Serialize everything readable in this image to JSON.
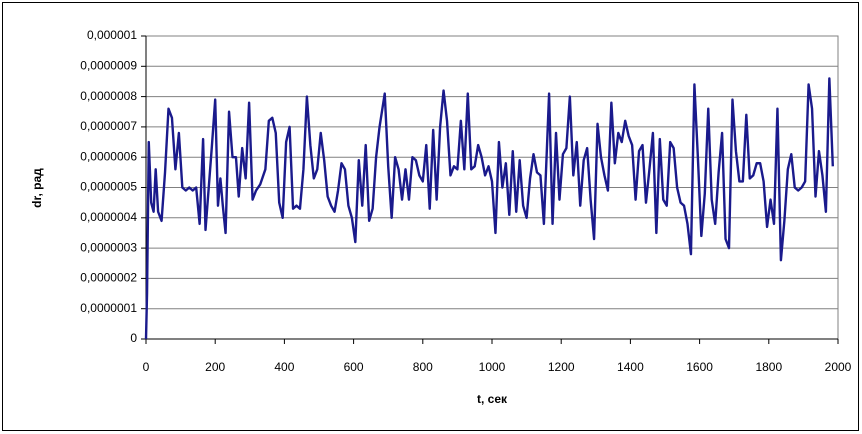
{
  "chart_data": {
    "type": "line",
    "x_label": "t, сек",
    "y_label": "dr,  рад",
    "x": [
      0,
      3,
      8,
      15,
      22,
      28,
      35,
      45,
      55,
      65,
      75,
      85,
      95,
      105,
      115,
      125,
      135,
      145,
      155,
      165,
      172,
      180,
      190,
      200,
      208,
      215,
      222,
      230,
      240,
      250,
      260,
      268,
      278,
      288,
      298,
      308,
      318,
      330,
      345,
      355,
      365,
      375,
      385,
      395,
      405,
      415,
      425,
      435,
      445,
      455,
      465,
      475,
      485,
      495,
      505,
      515,
      525,
      535,
      545,
      555,
      565,
      575,
      585,
      595,
      605,
      615,
      625,
      635,
      645,
      655,
      665,
      675,
      690,
      700,
      710,
      720,
      730,
      740,
      750,
      760,
      770,
      780,
      790,
      800,
      810,
      820,
      830,
      840,
      850,
      860,
      870,
      880,
      890,
      900,
      910,
      920,
      930,
      940,
      950,
      960,
      970,
      980,
      990,
      1000,
      1010,
      1020,
      1030,
      1040,
      1050,
      1060,
      1070,
      1080,
      1090,
      1100,
      1110,
      1120,
      1130,
      1140,
      1150,
      1165,
      1175,
      1185,
      1195,
      1205,
      1215,
      1225,
      1235,
      1245,
      1255,
      1265,
      1275,
      1285,
      1295,
      1305,
      1315,
      1325,
      1335,
      1345,
      1355,
      1365,
      1375,
      1385,
      1395,
      1405,
      1415,
      1425,
      1435,
      1445,
      1455,
      1465,
      1475,
      1485,
      1495,
      1505,
      1515,
      1525,
      1535,
      1545,
      1555,
      1565,
      1575,
      1585,
      1595,
      1605,
      1615,
      1625,
      1635,
      1645,
      1655,
      1665,
      1675,
      1685,
      1695,
      1705,
      1715,
      1725,
      1735,
      1745,
      1755,
      1765,
      1775,
      1785,
      1795,
      1805,
      1815,
      1825,
      1835,
      1845,
      1855,
      1865,
      1875,
      1885,
      1895,
      1905,
      1915,
      1925,
      1935,
      1945,
      1955,
      1965,
      1975,
      1985
    ],
    "series": [
      {
        "color": "#1a1a8c",
        "values": [
          0,
          1.5e-07,
          6.5e-07,
          4.5e-07,
          4.2e-07,
          5.6e-07,
          4.2e-07,
          3.9e-07,
          5.5e-07,
          7.6e-07,
          7.3e-07,
          5.6e-07,
          6.8e-07,
          5e-07,
          4.9e-07,
          5e-07,
          4.9e-07,
          5e-07,
          3.8e-07,
          6.6e-07,
          3.6e-07,
          4.8e-07,
          6.3e-07,
          7.9e-07,
          4.4e-07,
          5.3e-07,
          4.4e-07,
          3.5e-07,
          7.5e-07,
          6e-07,
          6e-07,
          4.7e-07,
          6.3e-07,
          5.3e-07,
          7.8e-07,
          4.6e-07,
          4.9e-07,
          5.1e-07,
          5.6e-07,
          7.2e-07,
          7.3e-07,
          6.8e-07,
          4.5e-07,
          4e-07,
          6.5e-07,
          7e-07,
          4.3e-07,
          4.4e-07,
          4.3e-07,
          5.6e-07,
          8e-07,
          6.4e-07,
          5.3e-07,
          5.6e-07,
          6.8e-07,
          5.9e-07,
          4.7e-07,
          4.4e-07,
          4.2e-07,
          4.9e-07,
          5.8e-07,
          5.6e-07,
          4.4e-07,
          4e-07,
          3.2e-07,
          5.9e-07,
          4.4e-07,
          6.4e-07,
          3.9e-07,
          4.3e-07,
          6e-07,
          7e-07,
          8.1e-07,
          5.7e-07,
          4e-07,
          6e-07,
          5.6e-07,
          4.6e-07,
          5.6e-07,
          4.6e-07,
          6e-07,
          5.9e-07,
          5.4e-07,
          5.2e-07,
          6.4e-07,
          4.3e-07,
          6.9e-07,
          4.6e-07,
          7e-07,
          8.2e-07,
          7.2e-07,
          5.4e-07,
          5.7e-07,
          5.6e-07,
          7.2e-07,
          5.6e-07,
          8.1e-07,
          5.6e-07,
          5.7e-07,
          6.4e-07,
          6e-07,
          5.4e-07,
          5.7e-07,
          5.2e-07,
          3.5e-07,
          6.5e-07,
          5e-07,
          5.8e-07,
          4.1e-07,
          6.2e-07,
          4.2e-07,
          5.9e-07,
          4.4e-07,
          4e-07,
          5.3e-07,
          6.1e-07,
          5.5e-07,
          5.4e-07,
          3.8e-07,
          8.1e-07,
          3.8e-07,
          6.8e-07,
          4.6e-07,
          6.1e-07,
          6.3e-07,
          8e-07,
          5.4e-07,
          6.5e-07,
          4.4e-07,
          5.9e-07,
          6.3e-07,
          4.6e-07,
          3.3e-07,
          7.1e-07,
          6e-07,
          5.4e-07,
          4.9e-07,
          7.8e-07,
          5.8e-07,
          6.8e-07,
          6.5e-07,
          7.2e-07,
          6.7e-07,
          6.4e-07,
          4.6e-07,
          6.2e-07,
          6.4e-07,
          4.5e-07,
          5.6e-07,
          6.8e-07,
          3.5e-07,
          6.6e-07,
          4.6e-07,
          4.4e-07,
          6.5e-07,
          6.3e-07,
          5e-07,
          4.5e-07,
          4.4e-07,
          3.8e-07,
          2.8e-07,
          8.4e-07,
          6e-07,
          3.4e-07,
          4.8e-07,
          7.6e-07,
          4.6e-07,
          3.8e-07,
          5.5e-07,
          6.8e-07,
          3.3e-07,
          3e-07,
          7.9e-07,
          6.2e-07,
          5.2e-07,
          5.2e-07,
          7.4e-07,
          5.3e-07,
          5.4e-07,
          5.8e-07,
          5.8e-07,
          5.2e-07,
          3.7e-07,
          4.6e-07,
          3.8e-07,
          7.6e-07,
          2.6e-07,
          3.9e-07,
          5.6e-07,
          6.1e-07,
          5e-07,
          4.9e-07,
          5e-07,
          5.2e-07,
          8.4e-07,
          7.6e-07,
          4.7e-07,
          6.2e-07,
          5.4e-07,
          4.2e-07,
          8.6e-07,
          5.7e-07
        ]
      }
    ],
    "xlim": [
      0,
      2000
    ],
    "xticks": [
      0,
      200,
      400,
      600,
      800,
      1000,
      1200,
      1400,
      1600,
      1800,
      2000
    ],
    "ylim": [
      0,
      1e-06
    ],
    "yticks": [
      0,
      {
        "value": 1e-07,
        "label": "0,0000001"
      },
      {
        "value": 2e-07,
        "label": "0,0000002"
      },
      {
        "value": 3e-07,
        "label": "0,0000003"
      },
      {
        "value": 4e-07,
        "label": "0,0000004"
      },
      {
        "value": 5e-07,
        "label": "0,0000005"
      },
      {
        "value": 6e-07,
        "label": "0,0000006"
      },
      {
        "value": 7e-07,
        "label": "0,0000007"
      },
      {
        "value": 8e-07,
        "label": "0,0000008"
      },
      {
        "value": 9e-07,
        "label": "0,0000009"
      },
      {
        "value": 1e-06,
        "label": "0,000001"
      }
    ],
    "grid": true
  }
}
